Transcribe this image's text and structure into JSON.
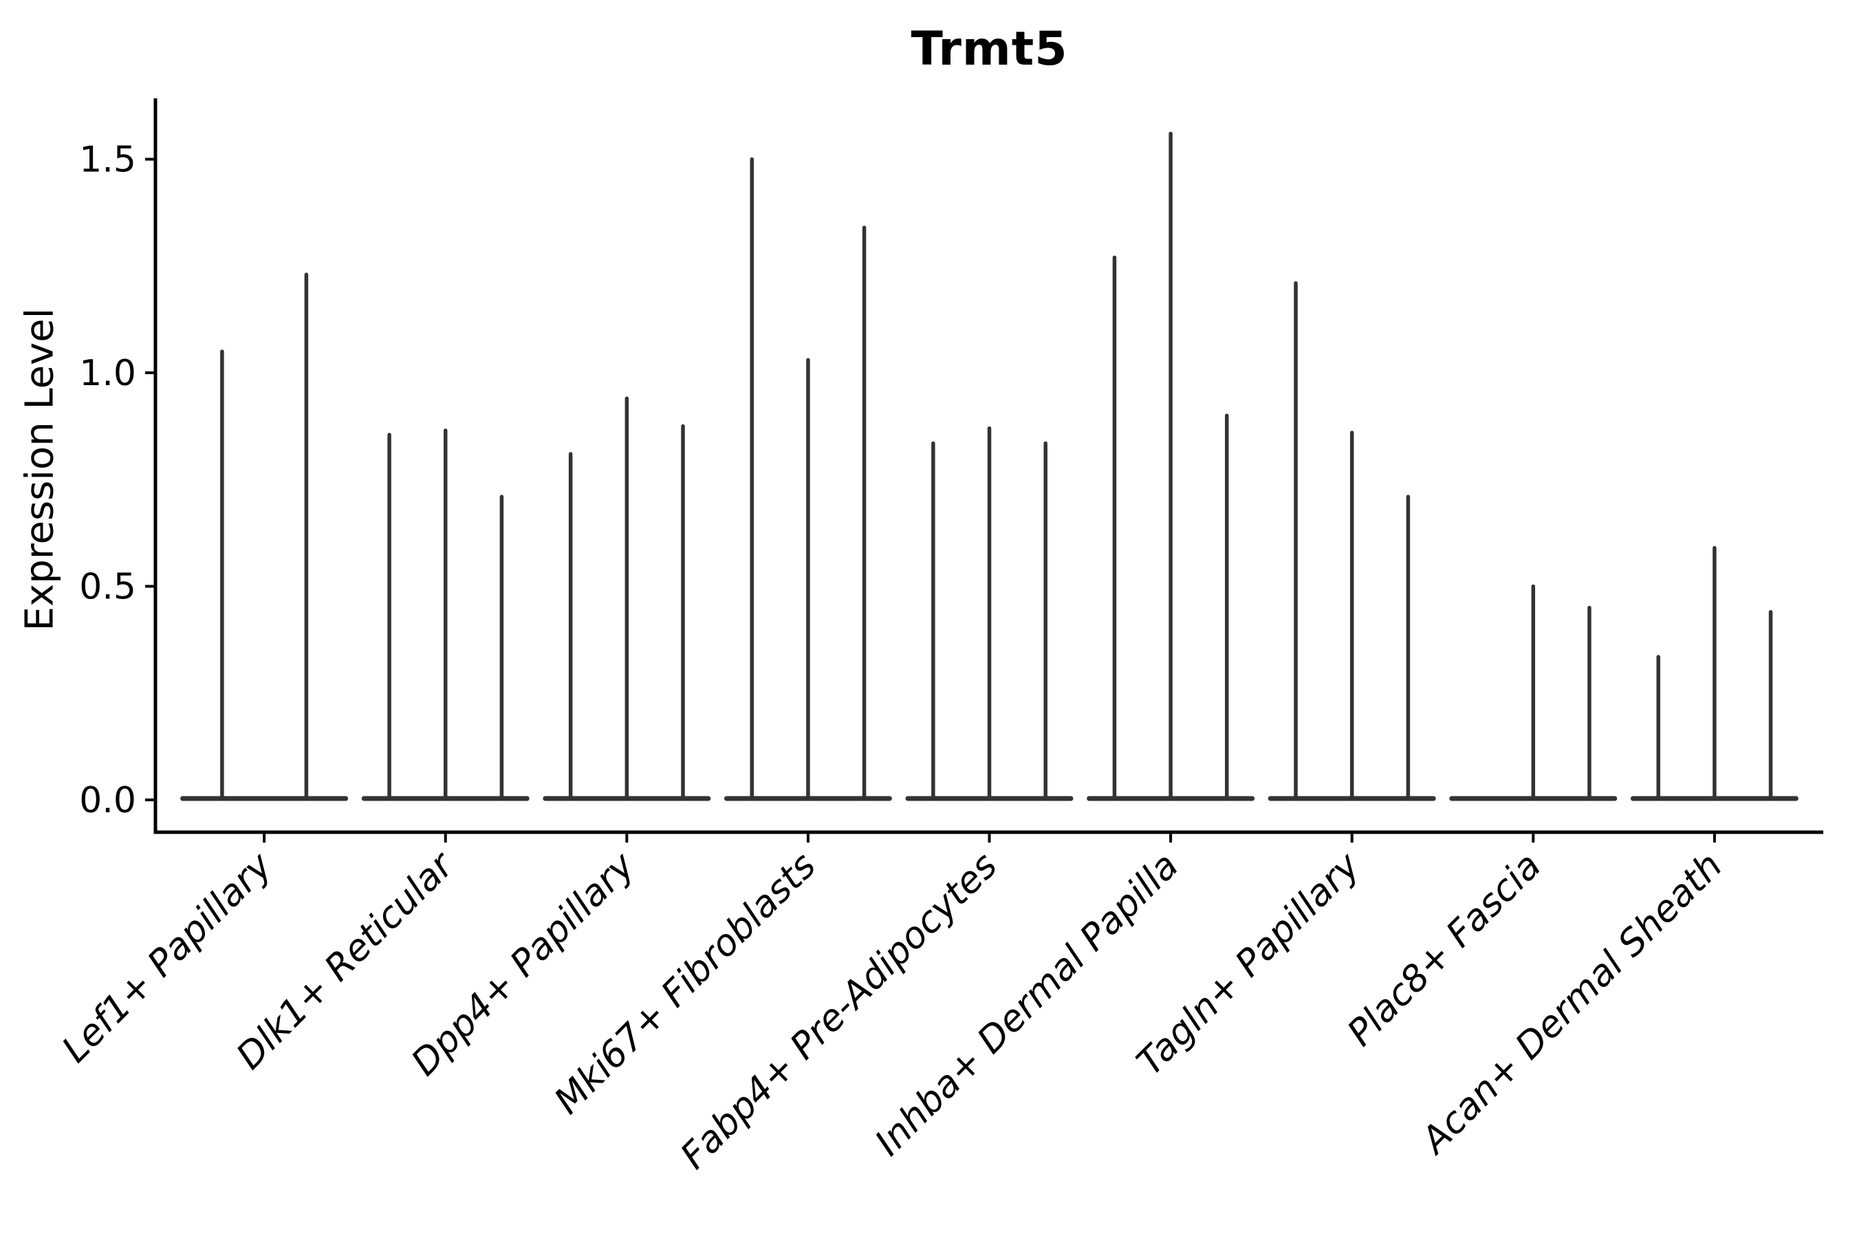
{
  "chart_data": {
    "type": "violin",
    "title": "Trmt5",
    "ylabel": "Expression Level",
    "xlabel": "",
    "ylim": [
      -0.07,
      1.64
    ],
    "yticks": [
      "0.0",
      "0.5",
      "1.0",
      "1.5"
    ],
    "ytick_values": [
      0.0,
      0.5,
      1.0,
      1.5
    ],
    "grid": "off",
    "legend": "none",
    "style_note": "needle violins collapsed at zero with flat base bar per group",
    "groups": [
      {
        "label": "Lef1+ Papillary",
        "violin_peaks": [
          1.05,
          1.23
        ]
      },
      {
        "label": "Dlk1+ Reticular",
        "violin_peaks": [
          0.855,
          0.865,
          0.71
        ]
      },
      {
        "label": "Dpp4+ Papillary",
        "violin_peaks": [
          0.81,
          0.94,
          0.875
        ]
      },
      {
        "label": "Mki67+ Fibroblasts",
        "violin_peaks": [
          1.5,
          1.03,
          1.34
        ]
      },
      {
        "label": "Fabp4+ Pre-Adipocytes",
        "violin_peaks": [
          0.835,
          0.87,
          0.835
        ]
      },
      {
        "label": "Inhba+ Dermal Papilla",
        "violin_peaks": [
          1.27,
          1.56,
          0.9
        ]
      },
      {
        "label": "Tagln+ Papillary",
        "violin_peaks": [
          1.21,
          0.86,
          0.71
        ]
      },
      {
        "label": "Plac8+ Fascia",
        "violin_peaks": [
          0.0,
          0.5,
          0.45
        ]
      },
      {
        "label": "Acan+ Dermal Sheath",
        "violin_peaks": [
          0.335,
          0.59,
          0.44
        ]
      }
    ],
    "colors": {
      "violin": "#333333",
      "axis": "#000000",
      "text": "#000000",
      "background": "#ffffff"
    }
  }
}
